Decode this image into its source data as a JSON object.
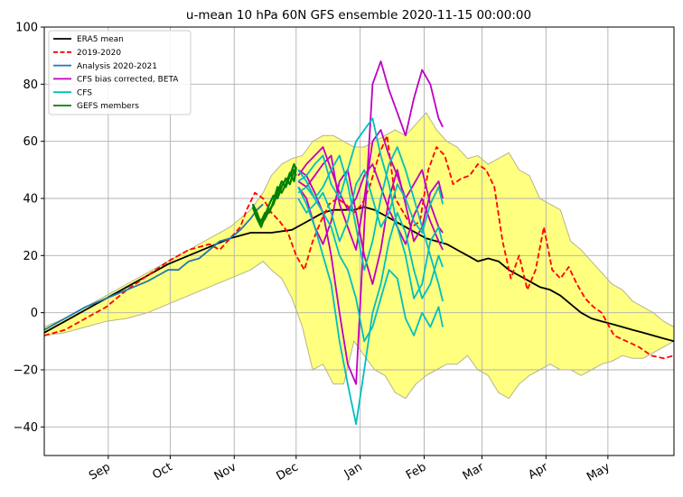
{
  "chart_data": {
    "type": "line",
    "title": "u-mean 10 hPa 60N GFS ensemble 2020-11-15 00:00:00",
    "xlabel": "",
    "ylabel": "",
    "ylim": [
      -50,
      100
    ],
    "yticks": [
      -40,
      -20,
      0,
      20,
      40,
      60,
      80,
      100
    ],
    "x_domain_days": [
      0,
      305
    ],
    "x_ticks": [
      {
        "label": "Sep",
        "day": 31
      },
      {
        "label": "Oct",
        "day": 61
      },
      {
        "label": "Nov",
        "day": 92
      },
      {
        "label": "Dec",
        "day": 122
      },
      {
        "label": "Jan",
        "day": 153
      },
      {
        "label": "Feb",
        "day": 184
      },
      {
        "label": "Mar",
        "day": 212
      },
      {
        "label": "Apr",
        "day": 243
      },
      {
        "label": "May",
        "day": 273
      }
    ],
    "grid": true,
    "legend_position": "top-left",
    "legend": [
      {
        "name": "ERA5 mean",
        "color": "#000000",
        "dash": "solid"
      },
      {
        "name": "2019-2020",
        "color": "#ff0000",
        "dash": "dashed"
      },
      {
        "name": "Analysis 2020-2021",
        "color": "#1f77b4",
        "dash": "solid"
      },
      {
        "name": "CFS bias corrected, BETA",
        "color": "#bf00bf",
        "dash": "solid"
      },
      {
        "name": "CFS",
        "color": "#00bfbf",
        "dash": "solid"
      },
      {
        "name": "GEFS members",
        "color": "#008000",
        "dash": "solid"
      }
    ],
    "band": {
      "name": "climatological range",
      "fill": "#ffff80",
      "edge": "#b5b58a",
      "x": [
        0,
        10,
        20,
        30,
        40,
        50,
        60,
        70,
        80,
        90,
        100,
        106,
        110,
        115,
        120,
        125,
        130,
        135,
        140,
        145,
        150,
        155,
        160,
        165,
        170,
        175,
        180,
        185,
        190,
        195,
        200,
        205,
        210,
        215,
        220,
        225,
        230,
        235,
        240,
        245,
        250,
        255,
        260,
        265,
        270,
        275,
        280,
        285,
        290,
        295,
        300,
        305
      ],
      "upper": [
        -5,
        -2,
        2,
        6,
        10,
        14,
        18,
        22,
        26,
        30,
        36,
        42,
        48,
        52,
        54,
        55,
        60,
        62,
        62,
        60,
        58,
        58,
        60,
        62,
        64,
        62,
        66,
        70,
        64,
        60,
        58,
        54,
        55,
        52,
        54,
        56,
        50,
        48,
        40,
        38,
        36,
        25,
        22,
        18,
        14,
        10,
        8,
        4,
        2,
        0,
        -3,
        -5
      ],
      "lower": [
        -8,
        -7,
        -5,
        -3,
        -2,
        0,
        3,
        6,
        9,
        12,
        15,
        18,
        15,
        12,
        5,
        -5,
        -20,
        -18,
        -25,
        -25,
        -10,
        -15,
        -20,
        -22,
        -28,
        -30,
        -25,
        -22,
        -20,
        -18,
        -18,
        -15,
        -20,
        -22,
        -28,
        -30,
        -25,
        -22,
        -20,
        -18,
        -20,
        -20,
        -22,
        -20,
        -18,
        -17,
        -15,
        -16,
        -16,
        -14,
        -12,
        -10
      ]
    },
    "series": [
      {
        "name": "ERA5 mean",
        "color": "#000000",
        "x": [
          0,
          10,
          20,
          30,
          40,
          50,
          60,
          70,
          80,
          90,
          100,
          110,
          120,
          125,
          130,
          135,
          140,
          145,
          150,
          155,
          160,
          165,
          170,
          175,
          180,
          185,
          190,
          195,
          200,
          205,
          210,
          215,
          220,
          225,
          230,
          235,
          240,
          245,
          250,
          255,
          260,
          265,
          270,
          275,
          280,
          285,
          290,
          295,
          300,
          305
        ],
        "y": [
          -7,
          -3,
          1,
          5,
          9,
          13,
          17,
          20,
          23,
          26,
          28,
          28,
          29,
          31,
          33,
          35,
          36,
          36,
          36,
          37,
          36,
          34,
          32,
          30,
          28,
          26,
          25,
          24,
          22,
          20,
          18,
          19,
          18,
          15,
          13,
          11,
          9,
          8,
          6,
          3,
          0,
          -2,
          -3,
          -4,
          -5,
          -6,
          -7,
          -8,
          -9,
          -10
        ]
      },
      {
        "name": "2019-2020",
        "color": "#ff0000",
        "x": [
          0,
          10,
          20,
          30,
          40,
          50,
          60,
          70,
          80,
          85,
          90,
          95,
          98,
          102,
          106,
          110,
          114,
          118,
          122,
          126,
          130,
          134,
          138,
          142,
          146,
          150,
          154,
          158,
          162,
          166,
          170,
          174,
          178,
          182,
          186,
          190,
          194,
          198,
          202,
          206,
          210,
          214,
          218,
          222,
          226,
          230,
          234,
          238,
          242,
          246,
          250,
          254,
          258,
          262,
          266,
          270,
          276,
          282,
          288,
          294,
          300,
          305
        ],
        "y": [
          -8,
          -6,
          -2,
          2,
          8,
          13,
          18,
          22,
          24,
          22,
          26,
          30,
          36,
          42,
          40,
          35,
          32,
          28,
          20,
          15,
          25,
          32,
          38,
          40,
          38,
          35,
          38,
          45,
          55,
          62,
          40,
          35,
          30,
          32,
          50,
          58,
          55,
          45,
          47,
          48,
          52,
          50,
          44,
          25,
          12,
          20,
          8,
          15,
          30,
          15,
          12,
          16,
          10,
          5,
          2,
          0,
          -8,
          -10,
          -12,
          -15,
          -16,
          -15
        ]
      },
      {
        "name": "Analysis 2020-2021",
        "color": "#1f77b4",
        "x": [
          0,
          10,
          20,
          30,
          40,
          50,
          55,
          60,
          65,
          70,
          75,
          80,
          85,
          90,
          95,
          100,
          103,
          106
        ],
        "y": [
          -6,
          -2,
          2,
          5,
          8,
          11,
          13,
          15,
          15,
          18,
          19,
          22,
          25,
          26,
          29,
          33,
          36,
          38
        ]
      },
      {
        "name": "CFS bias corrected, BETA",
        "color": "#bf00bf",
        "x": [
          123,
          127,
          131,
          135,
          139,
          143,
          147,
          151,
          155,
          159,
          163,
          167,
          171,
          175,
          179,
          183,
          187,
          191,
          193
        ],
        "y": [
          50,
          48,
          42,
          35,
          20,
          0,
          -18,
          -25,
          30,
          80,
          88,
          78,
          70,
          62,
          75,
          85,
          80,
          68,
          65
        ]
      },
      {
        "name": "CFS bias corrected, BETA",
        "color": "#bf00bf",
        "x": [
          123,
          127,
          131,
          135,
          139,
          143,
          147,
          151,
          155,
          159,
          163,
          167,
          171,
          175,
          179,
          183,
          187,
          191,
          193
        ],
        "y": [
          46,
          44,
          48,
          52,
          55,
          38,
          30,
          22,
          40,
          60,
          64,
          55,
          48,
          40,
          45,
          50,
          38,
          30,
          28
        ]
      },
      {
        "name": "CFS bias corrected, BETA",
        "color": "#bf00bf",
        "x": [
          123,
          127,
          131,
          135,
          139,
          143,
          147,
          151,
          155,
          159,
          163,
          167,
          171,
          175,
          179,
          183,
          187,
          191,
          193
        ],
        "y": [
          44,
          40,
          30,
          24,
          32,
          46,
          50,
          35,
          20,
          10,
          22,
          40,
          50,
          38,
          25,
          30,
          42,
          46,
          40
        ]
      },
      {
        "name": "CFS bias corrected, BETA",
        "color": "#bf00bf",
        "x": [
          123,
          127,
          131,
          135,
          139,
          143,
          147,
          151,
          155,
          159,
          163,
          167,
          171,
          175,
          179,
          183,
          187,
          191,
          193
        ],
        "y": [
          48,
          52,
          55,
          58,
          50,
          42,
          36,
          40,
          48,
          52,
          44,
          36,
          30,
          24,
          34,
          40,
          32,
          25,
          22
        ]
      },
      {
        "name": "CFS",
        "color": "#00bfbf",
        "x": [
          123,
          127,
          131,
          135,
          139,
          143,
          147,
          151,
          155,
          159,
          163,
          167,
          171,
          175,
          179,
          183,
          187,
          191,
          193
        ],
        "y": [
          44,
          38,
          30,
          20,
          10,
          -10,
          -25,
          -39,
          -20,
          0,
          10,
          25,
          35,
          28,
          15,
          5,
          10,
          20,
          16
        ]
      },
      {
        "name": "CFS",
        "color": "#00bfbf",
        "x": [
          123,
          127,
          131,
          135,
          139,
          143,
          147,
          151,
          155,
          159,
          163,
          167,
          171,
          175,
          179,
          183,
          187,
          191,
          193
        ],
        "y": [
          46,
          48,
          52,
          55,
          45,
          40,
          50,
          60,
          64,
          68,
          55,
          45,
          30,
          20,
          5,
          10,
          25,
          30,
          24
        ]
      },
      {
        "name": "CFS",
        "color": "#00bfbf",
        "x": [
          123,
          127,
          131,
          135,
          139,
          143,
          147,
          151,
          155,
          159,
          163,
          167,
          171,
          175,
          179,
          183,
          187,
          191,
          193
        ],
        "y": [
          42,
          44,
          40,
          35,
          30,
          20,
          15,
          5,
          -10,
          -5,
          5,
          15,
          12,
          -2,
          -8,
          0,
          -5,
          2,
          -5
        ]
      },
      {
        "name": "CFS",
        "color": "#00bfbf",
        "x": [
          123,
          127,
          131,
          135,
          139,
          143,
          147,
          151,
          155,
          159,
          163,
          167,
          171,
          175,
          179,
          183,
          187,
          191,
          193
        ],
        "y": [
          50,
          46,
          40,
          44,
          50,
          55,
          45,
          30,
          15,
          25,
          40,
          52,
          58,
          50,
          40,
          30,
          20,
          10,
          4
        ]
      },
      {
        "name": "CFS",
        "color": "#00bfbf",
        "x": [
          123,
          127,
          131,
          135,
          139,
          143,
          147,
          151,
          155,
          159,
          163,
          167,
          171,
          175,
          179,
          183,
          187,
          191,
          193
        ],
        "y": [
          40,
          35,
          38,
          42,
          35,
          25,
          32,
          45,
          50,
          40,
          30,
          35,
          45,
          40,
          32,
          28,
          38,
          44,
          38
        ]
      },
      {
        "name": "GEFS members",
        "color": "#008000",
        "x": [
          101,
          103,
          105,
          107,
          109,
          111,
          113,
          115,
          117,
          119,
          121,
          122
        ],
        "y": [
          38,
          35,
          31,
          33,
          36,
          38,
          42,
          46,
          44,
          48,
          52,
          50
        ]
      },
      {
        "name": "GEFS members",
        "color": "#008000",
        "x": [
          101,
          103,
          105,
          107,
          109,
          111,
          113,
          115,
          117,
          119,
          121,
          122
        ],
        "y": [
          37,
          33,
          30,
          34,
          38,
          41,
          40,
          44,
          47,
          45,
          50,
          48
        ]
      },
      {
        "name": "GEFS members",
        "color": "#008000",
        "x": [
          101,
          103,
          105,
          107,
          109,
          111,
          113,
          115,
          117,
          119,
          121,
          122
        ],
        "y": [
          38,
          34,
          32,
          35,
          35,
          39,
          44,
          42,
          45,
          49,
          46,
          51
        ]
      }
    ]
  }
}
